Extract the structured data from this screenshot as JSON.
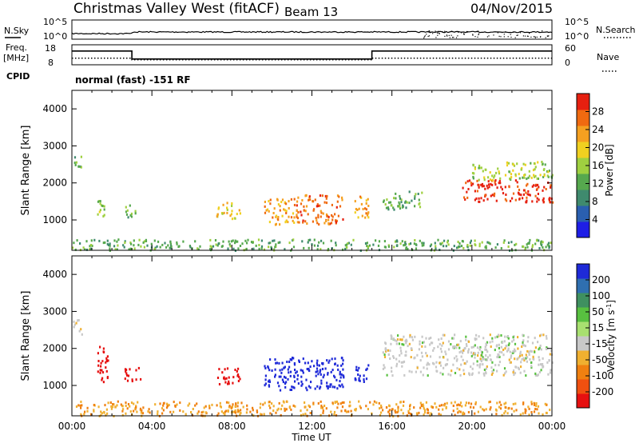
{
  "header": {
    "title": "Christmas Valley West (fitACF)",
    "beam": "Beam 13",
    "date": "04/Nov/2015"
  },
  "panels": {
    "nsky": {
      "left_label": "N.Sky",
      "right_label": "N.Search",
      "ticks_left": [
        "10^5",
        "10^0"
      ],
      "ticks_right": [
        "10^5",
        "10^0"
      ]
    },
    "freq": {
      "left_label_1": "Freq.",
      "left_label_2": "[MHz]",
      "right_label": "Nave",
      "ticks_left": [
        "18",
        "8"
      ],
      "ticks_right": [
        "60",
        "0"
      ],
      "cpid_label": "CPID",
      "cpid_text": "normal (fast) -151 RF"
    }
  },
  "chart_data": [
    {
      "type": "line",
      "name": "freq-nave",
      "x": [
        0,
        3,
        3,
        15,
        15,
        24
      ],
      "freq_mhz": [
        14.9,
        14.9,
        10.9,
        10.9,
        14.9,
        14.9
      ],
      "nave": [
        20,
        20,
        15,
        15,
        20,
        20
      ],
      "ylim_freq": [
        8,
        18
      ],
      "ylim_nave": [
        0,
        60
      ]
    },
    {
      "type": "heatmap",
      "name": "power",
      "ylabel": "Slant Range [km]",
      "xlabel": "",
      "ylim": [
        180,
        4500
      ],
      "yticks": [
        "1000",
        "2000",
        "3000",
        "4000"
      ],
      "xticks": [
        "00:00",
        "04:00",
        "08:00",
        "12:00",
        "16:00",
        "20:00",
        "00:00"
      ],
      "colorbar": {
        "label": "Power [dB]",
        "ticks": [
          "4",
          "8",
          "12",
          "16",
          "20",
          "24",
          "28"
        ],
        "colors": [
          "#1e1ee6",
          "#2a5fb0",
          "#3f8a6e",
          "#56a84e",
          "#9fd040",
          "#f0d020",
          "#f5a020",
          "#f06a10",
          "#e62010"
        ]
      },
      "regions": [
        {
          "t0": 0.0,
          "t1": 0.5,
          "r0": 2400,
          "r1": 2800,
          "level": 3
        },
        {
          "t0": 1.2,
          "t1": 1.8,
          "r0": 1100,
          "r1": 1600,
          "level": 4
        },
        {
          "t0": 2.6,
          "t1": 3.2,
          "r0": 1100,
          "r1": 1500,
          "level": 3
        },
        {
          "t0": 7.2,
          "t1": 8.4,
          "r0": 1050,
          "r1": 1500,
          "level": 5
        },
        {
          "t0": 9.6,
          "t1": 11.2,
          "r0": 900,
          "r1": 1600,
          "level": 6
        },
        {
          "t0": 11.2,
          "t1": 13.6,
          "r0": 900,
          "r1": 1700,
          "level": 7
        },
        {
          "t0": 14.1,
          "t1": 14.8,
          "r0": 1000,
          "r1": 1700,
          "level": 6
        },
        {
          "t0": 15.5,
          "t1": 17.5,
          "r0": 1300,
          "r1": 1800,
          "level": 3
        },
        {
          "t0": 19.5,
          "t1": 24.0,
          "r0": 1500,
          "r1": 2100,
          "level": 8
        },
        {
          "t0": 20.0,
          "t1": 24.0,
          "r0": 2100,
          "r1": 2600,
          "level": 4
        },
        {
          "t0": 0.0,
          "t1": 24.0,
          "r0": 200,
          "r1": 500,
          "level": 3
        }
      ]
    },
    {
      "type": "heatmap",
      "name": "velocity",
      "ylabel": "Slant Range [km]",
      "xlabel": "Time UT",
      "ylim": [
        180,
        4500
      ],
      "yticks": [
        "1000",
        "2000",
        "3000",
        "4000"
      ],
      "xticks": [
        "00:00",
        "04:00",
        "08:00",
        "12:00",
        "16:00",
        "20:00",
        "00:00"
      ],
      "colorbar": {
        "label": "Velocity [m s^-1]",
        "ticks": [
          "200",
          "100",
          "50",
          "15",
          "-15",
          "-50",
          "-100",
          "-200"
        ],
        "colors": [
          "#1e2ad8",
          "#2f6fb0",
          "#3f9060",
          "#58c040",
          "#a8e070",
          "#c8c8c8",
          "#f0b030",
          "#f08010",
          "#f05010",
          "#e61010"
        ]
      },
      "regions": [
        {
          "t0": 0.0,
          "t1": 0.5,
          "r0": 2400,
          "r1": 2800,
          "velocity": 0
        },
        {
          "t0": 1.2,
          "t1": 1.8,
          "r0": 1100,
          "r1": 2100,
          "velocity": -200
        },
        {
          "t0": 2.6,
          "t1": 3.4,
          "r0": 1100,
          "r1": 1500,
          "velocity": -200
        },
        {
          "t0": 7.2,
          "t1": 8.4,
          "r0": 1050,
          "r1": 1500,
          "velocity": -200
        },
        {
          "t0": 9.6,
          "t1": 13.6,
          "r0": 900,
          "r1": 1800,
          "velocity": 200
        },
        {
          "t0": 14.1,
          "t1": 14.8,
          "r0": 1000,
          "r1": 1600,
          "velocity": 200
        },
        {
          "t0": 15.5,
          "t1": 24.0,
          "r0": 1300,
          "r1": 2400,
          "velocity": 0
        },
        {
          "t0": 0.0,
          "t1": 24.0,
          "r0": 200,
          "r1": 600,
          "velocity": -50
        }
      ]
    }
  ]
}
